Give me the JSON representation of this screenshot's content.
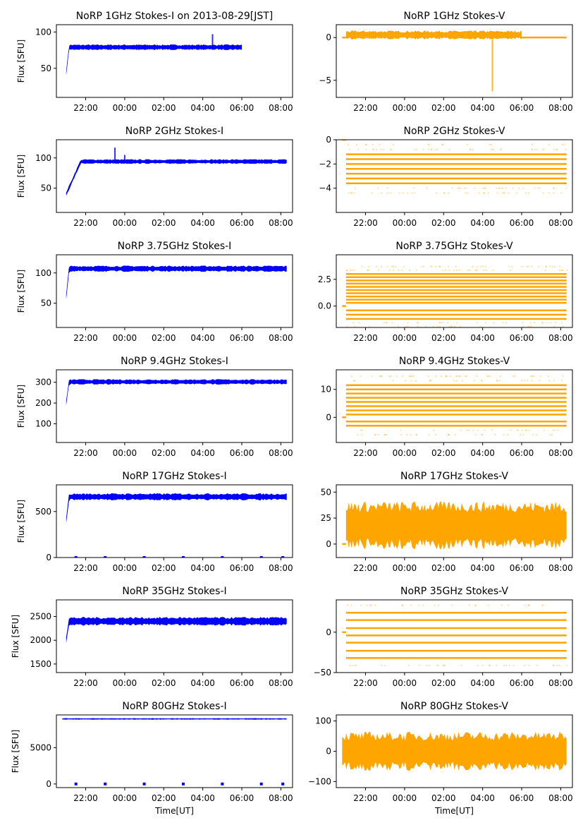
{
  "figure_title": "NoRP 1GHz Stokes-I on 2013-08-29[JST]",
  "colors": {
    "stokes_i": "#0000ff",
    "stokes_v": "#ffa500"
  },
  "chart_data": [
    {
      "id": "i1",
      "type": "scatter",
      "title": "NoRP 1GHz Stokes-I on 2013-08-29[JST]",
      "ylabel": "Flux [SFU]",
      "xlabel": "",
      "ylim": [
        10,
        110
      ],
      "yticks": [
        50,
        100
      ],
      "ytick_labels": [
        "50",
        "100"
      ],
      "x_start_hours": 20.8,
      "x_end_hours": 32.3,
      "data_start": 21.0,
      "data_end": 30.0,
      "level": 79,
      "spread": 3,
      "ramp_from": 43,
      "spikes": [
        {
          "t": 28.5,
          "v": 97
        }
      ],
      "color_key": "stokes_i"
    },
    {
      "id": "v1",
      "type": "scatter",
      "title": "NoRP 1GHz Stokes-V",
      "ylabel": "",
      "xlabel": "",
      "ylim": [
        -7,
        1.5
      ],
      "yticks": [
        -5,
        0
      ],
      "ytick_labels": [
        "−5",
        "0"
      ],
      "x_start_hours": 20.8,
      "x_end_hours": 32.3,
      "data_start": 21.0,
      "data_end": 30.0,
      "level": 0.3,
      "spread": 0.4,
      "tail_level": 0,
      "spikes": [
        {
          "t": 28.5,
          "v": -6.3
        }
      ],
      "color_key": "stokes_v"
    },
    {
      "id": "i2",
      "type": "scatter",
      "title": "NoRP 2GHz Stokes-I",
      "ylabel": "Flux [SFU]",
      "xlabel": "",
      "ylim": [
        10,
        130
      ],
      "yticks": [
        50,
        100
      ],
      "ytick_labels": [
        "50",
        "100"
      ],
      "x_start_hours": 20.8,
      "x_end_hours": 32.3,
      "data_start": 21.0,
      "data_end": 32.3,
      "level": 94,
      "spread": 3,
      "ramp_from": 40,
      "spikes": [
        {
          "t": 23.5,
          "v": 117
        },
        {
          "t": 24.0,
          "v": 105
        }
      ],
      "color_key": "stokes_i"
    },
    {
      "id": "v2",
      "type": "scatter",
      "title": "NoRP 2GHz Stokes-V",
      "ylabel": "",
      "xlabel": "",
      "ylim": [
        -6,
        0
      ],
      "yticks": [
        -4,
        -2,
        0
      ],
      "ytick_labels": [
        "−4",
        "−2",
        "0"
      ],
      "x_start_hours": 20.8,
      "x_end_hours": 32.3,
      "data_start": 21.0,
      "data_end": 32.3,
      "levels": [
        -1.2,
        -1.6,
        -2.0,
        -2.4,
        -2.8,
        -3.2,
        -3.6
      ],
      "color_key": "stokes_v"
    },
    {
      "id": "i3",
      "type": "scatter",
      "title": "NoRP 3.75GHz Stokes-I",
      "ylabel": "Flux [SFU]",
      "xlabel": "",
      "ylim": [
        10,
        130
      ],
      "yticks": [
        50,
        100
      ],
      "ytick_labels": [
        "50",
        "100"
      ],
      "x_start_hours": 20.8,
      "x_end_hours": 32.3,
      "data_start": 21.0,
      "data_end": 32.3,
      "level": 107,
      "spread": 4,
      "ramp_from": 60,
      "color_key": "stokes_i"
    },
    {
      "id": "v3",
      "type": "scatter",
      "title": "NoRP 3.75GHz Stokes-V",
      "ylabel": "",
      "xlabel": "",
      "ylim": [
        -2,
        4.8
      ],
      "yticks": [
        0,
        2.5
      ],
      "ytick_labels": [
        "0.0",
        "2.5"
      ],
      "x_start_hours": 20.8,
      "x_end_hours": 32.3,
      "data_start": 21.0,
      "data_end": 32.3,
      "levels": [
        -1.2,
        -0.8,
        -0.4,
        0.3,
        0.6,
        0.9,
        1.2,
        1.5,
        1.8,
        2.1,
        2.4,
        2.7,
        3.0
      ],
      "color_key": "stokes_v"
    },
    {
      "id": "i4",
      "type": "scatter",
      "title": "NoRP 9.4GHz Stokes-I",
      "ylabel": "Flux [SFU]",
      "xlabel": "",
      "ylim": [
        10,
        360
      ],
      "yticks": [
        100,
        200,
        300
      ],
      "ytick_labels": [
        "100",
        "200",
        "300"
      ],
      "x_start_hours": 20.8,
      "x_end_hours": 32.3,
      "data_start": 21.0,
      "data_end": 32.3,
      "level": 302,
      "spread": 10,
      "ramp_from": 200,
      "color_key": "stokes_i"
    },
    {
      "id": "v4",
      "type": "scatter",
      "title": "NoRP 9.4GHz Stokes-V",
      "ylabel": "",
      "xlabel": "",
      "ylim": [
        -9,
        17
      ],
      "yticks": [
        0,
        10
      ],
      "ytick_labels": [
        "0",
        "10"
      ],
      "x_start_hours": 20.8,
      "x_end_hours": 32.3,
      "data_start": 21.0,
      "data_end": 32.3,
      "levels": [
        -3,
        -1.5,
        1,
        2.5,
        4,
        5.5,
        7,
        8.5,
        10,
        11.5
      ],
      "color_key": "stokes_v"
    },
    {
      "id": "i5",
      "type": "scatter",
      "title": "NoRP 17GHz Stokes-I",
      "ylabel": "Flux [SFU]",
      "xlabel": "",
      "ylim": [
        0,
        790
      ],
      "yticks": [
        0,
        500
      ],
      "ytick_labels": [
        "0",
        "500"
      ],
      "x_start_hours": 20.8,
      "x_end_hours": 32.3,
      "data_start": 21.0,
      "data_end": 32.3,
      "level": 660,
      "spread": 30,
      "ramp_from": 400,
      "zero_marks": [
        21.5,
        23.0,
        25.0,
        27.0,
        29.0,
        31.0,
        32.1
      ],
      "color_key": "stokes_i"
    },
    {
      "id": "v5",
      "type": "scatter",
      "title": "NoRP 17GHz Stokes-V",
      "ylabel": "",
      "xlabel": "",
      "ylim": [
        -13,
        57
      ],
      "yticks": [
        0,
        25,
        50
      ],
      "ytick_labels": [
        "0",
        "25",
        "50"
      ],
      "x_start_hours": 20.8,
      "x_end_hours": 32.3,
      "data_start": 21.0,
      "data_end": 32.3,
      "level": 18,
      "spread": 18,
      "color_key": "stokes_v"
    },
    {
      "id": "i6",
      "type": "scatter",
      "title": "NoRP 35GHz Stokes-I",
      "ylabel": "Flux [SFU]",
      "xlabel": "",
      "ylim": [
        1320,
        2850
      ],
      "yticks": [
        1500,
        2000,
        2500
      ],
      "ytick_labels": [
        "1500",
        "2000",
        "2500"
      ],
      "x_start_hours": 20.8,
      "x_end_hours": 32.3,
      "data_start": 21.0,
      "data_end": 32.3,
      "level": 2400,
      "spread": 70,
      "ramp_from": 2000,
      "color_key": "stokes_i"
    },
    {
      "id": "v6",
      "type": "scatter",
      "title": "NoRP 35GHz Stokes-V",
      "ylabel": "",
      "xlabel": "",
      "ylim": [
        -50,
        40
      ],
      "yticks": [
        -50,
        0
      ],
      "ytick_labels": [
        "−50",
        "0"
      ],
      "x_start_hours": 20.8,
      "x_end_hours": 32.3,
      "data_start": 21.0,
      "data_end": 32.3,
      "levels": [
        -32,
        -23,
        -13,
        -4,
        5,
        15,
        24
      ],
      "color_key": "stokes_v"
    },
    {
      "id": "i7",
      "type": "scatter",
      "title": "NoRP 80GHz Stokes-I",
      "ylabel": "Flux [SFU]",
      "xlabel": "Time[UT]",
      "ylim": [
        -500,
        9500
      ],
      "yticks": [
        0,
        5000
      ],
      "ytick_labels": [
        "0",
        "5000"
      ],
      "x_start_hours": 20.8,
      "x_end_hours": 32.3,
      "data_start": 20.8,
      "data_end": 32.3,
      "level": 8950,
      "spread": 80,
      "zero_marks": [
        21.5,
        23.0,
        25.0,
        27.0,
        29.0,
        31.0,
        32.1
      ],
      "color_key": "stokes_i"
    },
    {
      "id": "v7",
      "type": "scatter",
      "title": "NoRP 80GHz Stokes-V",
      "ylabel": "",
      "xlabel": "Time[UT]",
      "ylim": [
        -120,
        120
      ],
      "yticks": [
        -100,
        0,
        100
      ],
      "ytick_labels": [
        "−100",
        "0",
        "100"
      ],
      "x_start_hours": 20.8,
      "x_end_hours": 32.3,
      "data_start": 20.8,
      "data_end": 32.3,
      "level": 0,
      "spread": 50,
      "color_key": "stokes_v"
    }
  ],
  "xticks_hours": [
    22,
    24,
    26,
    28,
    30,
    32
  ],
  "xtick_labels": [
    "22:00",
    "00:00",
    "02:00",
    "04:00",
    "06:00",
    "08:00"
  ],
  "x_range_hours": [
    20.5,
    32.6
  ]
}
